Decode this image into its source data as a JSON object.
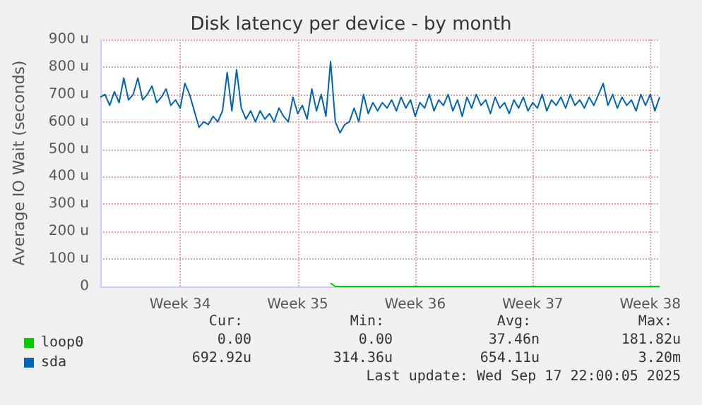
{
  "chart_data": {
    "type": "line",
    "title": "Disk latency per device - by month",
    "ylabel": "Average IO Wait (seconds)",
    "categories": [
      null,
      null,
      null,
      null,
      null,
      null,
      null,
      null,
      null,
      null,
      null,
      null,
      null,
      null,
      null,
      null,
      null,
      "Week 34",
      null,
      null,
      null,
      null,
      null,
      null,
      null,
      null,
      null,
      null,
      null,
      null,
      null,
      null,
      null,
      null,
      null,
      null,
      null,
      null,
      null,
      null,
      null,
      null,
      "Week 35",
      null,
      null,
      null,
      null,
      null,
      null,
      null,
      null,
      null,
      null,
      null,
      null,
      null,
      null,
      null,
      null,
      null,
      null,
      null,
      null,
      null,
      null,
      null,
      null,
      "Week 36",
      null,
      null,
      null,
      null,
      null,
      null,
      null,
      null,
      null,
      null,
      null,
      null,
      null,
      null,
      null,
      null,
      null,
      null,
      null,
      null,
      null,
      null,
      null,
      null,
      "Week 37",
      null,
      null,
      null,
      null,
      null,
      null,
      null,
      null,
      null,
      null,
      null,
      null,
      null,
      null,
      null,
      null,
      null,
      null,
      null,
      null,
      null,
      null,
      null,
      null,
      "Week 38",
      null,
      null
    ],
    "ylim": [
      0,
      900
    ],
    "yticks": [
      0,
      {
        "value": 100,
        "label": "100 u"
      },
      {
        "value": 200,
        "label": "200 u"
      },
      {
        "value": 300,
        "label": "300 u"
      },
      {
        "value": 400,
        "label": "400 u"
      },
      {
        "value": 500,
        "label": "500 u"
      },
      {
        "value": 600,
        "label": "600 u"
      },
      {
        "value": 700,
        "label": "700 u"
      },
      {
        "value": 800,
        "label": "800 u"
      },
      {
        "value": 900,
        "label": "900 u"
      }
    ],
    "grid": true,
    "legend": "bottom left",
    "marker": "none",
    "line_style": "solid",
    "series": [
      {
        "name": "loop0",
        "color": "#00cc00",
        "values": [
          null,
          null,
          null,
          null,
          null,
          null,
          null,
          null,
          null,
          null,
          null,
          null,
          null,
          null,
          null,
          null,
          null,
          null,
          null,
          null,
          null,
          null,
          null,
          null,
          null,
          null,
          null,
          null,
          null,
          null,
          null,
          null,
          null,
          null,
          null,
          null,
          null,
          null,
          null,
          null,
          null,
          null,
          null,
          null,
          null,
          null,
          null,
          null,
          null,
          12,
          0,
          0,
          0,
          0,
          0,
          0,
          0,
          0,
          0,
          0,
          0,
          0,
          0,
          0,
          0,
          0,
          0,
          0,
          0,
          0,
          0,
          0,
          0,
          0,
          0,
          0,
          0,
          0,
          0,
          0,
          0,
          0,
          0,
          0,
          0,
          0,
          0,
          0,
          0,
          0,
          0,
          0,
          0,
          0,
          0,
          0,
          0,
          0,
          0,
          0,
          0,
          0,
          0,
          0,
          0,
          0,
          0,
          0,
          0,
          0,
          0,
          0,
          0,
          0,
          0,
          0,
          0,
          0,
          0,
          0
        ]
      },
      {
        "name": "sda",
        "color": "#0066b3",
        "values": [
          690,
          700,
          660,
          710,
          670,
          760,
          680,
          700,
          760,
          680,
          700,
          730,
          670,
          690,
          720,
          660,
          680,
          650,
          740,
          700,
          640,
          580,
          600,
          590,
          620,
          600,
          640,
          780,
          640,
          790,
          650,
          610,
          640,
          600,
          640,
          610,
          630,
          600,
          650,
          620,
          600,
          690,
          630,
          660,
          610,
          720,
          640,
          700,
          620,
          820,
          600,
          560,
          590,
          600,
          650,
          600,
          700,
          630,
          670,
          640,
          670,
          650,
          680,
          640,
          690,
          650,
          680,
          620,
          670,
          650,
          700,
          640,
          680,
          660,
          700,
          640,
          680,
          620,
          690,
          650,
          700,
          660,
          680,
          630,
          690,
          650,
          670,
          630,
          680,
          650,
          690,
          640,
          670,
          650,
          700,
          640,
          680,
          660,
          690,
          650,
          700,
          660,
          680,
          650,
          690,
          660,
          700,
          740,
          660,
          700,
          650,
          690,
          660,
          680,
          640,
          700,
          660,
          700,
          640,
          690
        ]
      }
    ],
    "annotations": [
      "Cur:",
      "Min:",
      "Avg:",
      "Max:",
      "0.00",
      "0.00",
      "37.46n",
      "181.82u",
      "692.92u",
      "314.36u",
      "654.11u",
      "3.20m",
      "Last update: Wed Sep 17 22:00:05 2025"
    ]
  }
}
